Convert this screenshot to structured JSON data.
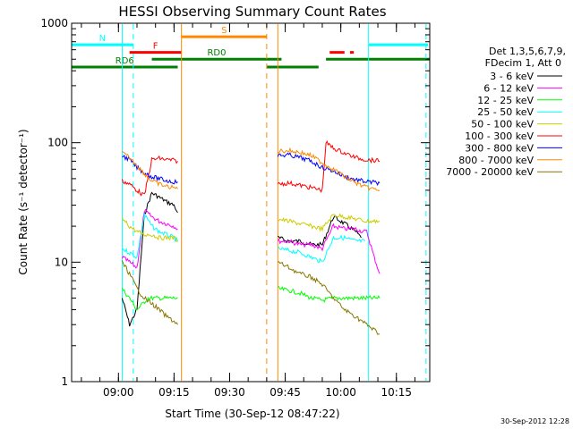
{
  "chart_data": {
    "type": "line",
    "title": "HESSI Observing Summary Count Rates",
    "xlabel": "Start Time (30-Sep-12 08:47:22)",
    "ylabel": "Count Rate (s⁻¹ detector⁻¹)",
    "y_scale": "log",
    "ylim": [
      1,
      1000
    ],
    "xlim": [
      "08:47:22",
      "10:24:00"
    ],
    "y_ticks": [
      {
        "v": 1,
        "label": "1"
      },
      {
        "v": 10,
        "label": "10"
      },
      {
        "v": 100,
        "label": "100"
      },
      {
        "v": 1000,
        "label": "1000"
      }
    ],
    "x_ticks": [
      "09:00",
      "09:15",
      "09:30",
      "09:45",
      "10:00",
      "10:15"
    ],
    "grid": false,
    "legend": {
      "placement": "right",
      "header": [
        "Det 1,3,5,6,7,9,",
        "FDecim 1, Att 0"
      ]
    },
    "series": [
      {
        "name": "3 - 6 keV",
        "color": "#000000",
        "segments": [
          {
            "x": [
              "09:01:00",
              "09:03:00",
              "09:05:00",
              "09:07:00",
              "09:09:00",
              "09:11:00",
              "09:13:00",
              "09:15:00",
              "09:16:00"
            ],
            "y": [
              5,
              3,
              4,
              25,
              38,
              35,
              32,
              30,
              26
            ]
          },
          {
            "x": [
              "09:43:00",
              "09:46:00",
              "09:49:00",
              "09:52:00",
              "09:55:00",
              "09:58:00",
              "10:00:00",
              "10:02:00",
              "10:04:00",
              "10:05:30"
            ],
            "y": [
              16,
              15,
              15,
              14,
              14,
              24,
              22,
              20,
              18,
              16
            ]
          }
        ]
      },
      {
        "name": "6 - 12 keV",
        "color": "#ff00ff",
        "segments": [
          {
            "x": [
              "09:01:00",
              "09:03:00",
              "09:05:00",
              "09:07:00",
              "09:09:00",
              "09:11:00",
              "09:13:00",
              "09:15:00",
              "09:16:00"
            ],
            "y": [
              11,
              10,
              9,
              27,
              24,
              22,
              21,
              20,
              19
            ]
          },
          {
            "x": [
              "09:43:00",
              "09:46:00",
              "09:49:00",
              "09:52:00",
              "09:55:00",
              "09:58:00",
              "10:01:00",
              "10:04:00",
              "10:06:00",
              "10:07:00",
              "10:09:00",
              "10:10:30"
            ],
            "y": [
              15,
              15,
              14,
              14,
              13,
              20,
              19,
              19,
              18,
              18,
              11,
              8
            ]
          }
        ]
      },
      {
        "name": "12 - 25 keV",
        "color": "#00ff00",
        "segments": [
          {
            "x": [
              "09:01:00",
              "09:03:00",
              "09:05:00",
              "09:08:00",
              "09:11:00",
              "09:14:00",
              "09:16:00"
            ],
            "y": [
              6,
              5,
              4,
              5,
              5,
              5,
              5
            ]
          },
          {
            "x": [
              "09:43:00",
              "09:46:00",
              "09:49:00",
              "09:52:00",
              "09:55:00",
              "09:58:00",
              "10:01:00",
              "10:04:00",
              "10:07:00",
              "10:10:30"
            ],
            "y": [
              6,
              5.8,
              5.5,
              5,
              4.8,
              5,
              5,
              5,
              5,
              5
            ]
          }
        ]
      },
      {
        "name": "25 - 50 keV",
        "color": "#00ffff",
        "segments": [
          {
            "x": [
              "09:01:00",
              "09:03:00",
              "09:05:00",
              "09:07:00",
              "09:09:00",
              "09:11:00",
              "09:13:00",
              "09:15:00",
              "09:16:00"
            ],
            "y": [
              13,
              12,
              11,
              25,
              20,
              18,
              17,
              16,
              15
            ]
          },
          {
            "x": [
              "09:43:00",
              "09:46:00",
              "09:49:00",
              "09:52:00",
              "09:55:00",
              "09:58:00",
              "10:01:00",
              "10:04:00",
              "10:06:30"
            ],
            "y": [
              13,
              12.5,
              12,
              11,
              10,
              16,
              16,
              15,
              15
            ]
          }
        ]
      },
      {
        "name": "50 - 100 keV",
        "color": "#cccc00",
        "segments": [
          {
            "x": [
              "09:01:00",
              "09:03:00",
              "09:05:00",
              "09:07:00",
              "09:09:00",
              "09:11:00",
              "09:13:00",
              "09:15:00",
              "09:16:00"
            ],
            "y": [
              23,
              20,
              18,
              17,
              17,
              16,
              16,
              16,
              15
            ]
          },
          {
            "x": [
              "09:43:00",
              "09:46:00",
              "09:49:00",
              "09:52:00",
              "09:55:00",
              "09:58:00",
              "10:01:00",
              "10:04:00",
              "10:07:00",
              "10:10:30"
            ],
            "y": [
              23,
              22,
              21,
              20,
              19,
              25,
              24,
              23,
              22,
              22
            ]
          }
        ]
      },
      {
        "name": "100 - 300 keV",
        "color": "#ff0000",
        "segments": [
          {
            "x": [
              "09:01:00",
              "09:03:00",
              "09:05:00",
              "09:07:00",
              "09:09:00",
              "09:11:00",
              "09:13:00",
              "09:15:00",
              "09:16:00"
            ],
            "y": [
              48,
              45,
              40,
              36,
              72,
              74,
              72,
              71,
              70
            ]
          },
          {
            "x": [
              "09:43:00",
              "09:46:00",
              "09:49:00",
              "09:52:00",
              "09:55:00",
              "09:56:00",
              "09:58:00",
              "10:01:00",
              "10:04:00",
              "10:07:00",
              "10:10:30"
            ],
            "y": [
              45,
              46,
              44,
              42,
              40,
              100,
              90,
              82,
              75,
              72,
              70
            ]
          }
        ]
      },
      {
        "name": "300 - 800 keV",
        "color": "#0000ff",
        "segments": [
          {
            "x": [
              "09:01:00",
              "09:03:00",
              "09:05:00",
              "09:07:00",
              "09:09:00",
              "09:11:00",
              "09:13:00",
              "09:15:00",
              "09:16:00"
            ],
            "y": [
              78,
              72,
              62,
              56,
              52,
              50,
              48,
              47,
              47
            ]
          },
          {
            "x": [
              "09:43:00",
              "09:46:00",
              "09:49:00",
              "09:52:00",
              "09:55:00",
              "09:58:00",
              "10:01:00",
              "10:04:00",
              "10:07:00",
              "10:10:30"
            ],
            "y": [
              78,
              79,
              75,
              70,
              62,
              58,
              52,
              49,
              47,
              46
            ]
          }
        ]
      },
      {
        "name": "800 - 7000 keV",
        "color": "#ff8800",
        "segments": [
          {
            "x": [
              "09:01:00",
              "09:03:00",
              "09:05:00",
              "09:07:00",
              "09:09:00",
              "09:11:00",
              "09:13:00",
              "09:15:00",
              "09:16:00"
            ],
            "y": [
              82,
              75,
              65,
              55,
              48,
              45,
              43,
              42,
              41
            ]
          },
          {
            "x": [
              "09:43:00",
              "09:46:00",
              "09:49:00",
              "09:52:00",
              "09:55:00",
              "09:58:00",
              "10:01:00",
              "10:04:00",
              "10:07:00",
              "10:10:30"
            ],
            "y": [
              85,
              86,
              83,
              78,
              68,
              60,
              52,
              46,
              42,
              40
            ]
          }
        ]
      },
      {
        "name": "7000 - 20000 keV",
        "color": "#887700",
        "segments": [
          {
            "x": [
              "09:01:00",
              "09:03:00",
              "09:05:00",
              "09:07:00",
              "09:09:00",
              "09:11:00",
              "09:13:00",
              "09:15:00",
              "09:16:00"
            ],
            "y": [
              10,
              8,
              6,
              5,
              4.5,
              4,
              3.5,
              3.2,
              3
            ]
          },
          {
            "x": [
              "09:43:00",
              "09:46:00",
              "09:49:00",
              "09:52:00",
              "09:55:00",
              "09:58:00",
              "10:01:00",
              "10:04:00",
              "10:07:00",
              "10:10:30"
            ],
            "y": [
              10,
              9,
              8,
              7.5,
              6.5,
              5,
              4,
              3.5,
              3,
              2.5
            ]
          }
        ]
      }
    ],
    "flags": [
      {
        "label": "N",
        "color": "#00ffff",
        "level": 660,
        "spans": [
          [
            "08:47:22",
            "09:04:00"
          ],
          [
            "10:07:30",
            "10:23:30"
          ]
        ]
      },
      {
        "label": "S",
        "color": "#ff8800",
        "level": 770,
        "spans": [
          [
            "09:17:00",
            "09:40:00"
          ]
        ]
      },
      {
        "label": "F",
        "color": "#ff0000",
        "level": 570,
        "spans": [
          [
            "09:03:00",
            "09:17:00"
          ],
          [
            "09:57:00",
            "10:01:00"
          ],
          [
            "10:02:30",
            "10:03:30"
          ]
        ]
      },
      {
        "label": "RD0",
        "color": "#008000",
        "level": 500,
        "spans": [
          [
            "09:09:00",
            "09:44:00"
          ],
          [
            "09:56:00",
            "10:24:00"
          ]
        ]
      },
      {
        "label": "RD6",
        "color": "#008000",
        "level": 430,
        "spans": [
          [
            "08:47:22",
            "09:16:00"
          ],
          [
            "09:40:00",
            "09:54:00"
          ]
        ]
      }
    ],
    "vlines": [
      {
        "time": "09:01:00",
        "color": "#00ffff",
        "style": "solid"
      },
      {
        "time": "09:04:00",
        "color": "#00ffff",
        "style": "dashed"
      },
      {
        "time": "09:17:00",
        "color": "#ff8800",
        "style": "solid"
      },
      {
        "time": "09:40:00",
        "color": "#ff8800",
        "style": "dashed"
      },
      {
        "time": "09:43:00",
        "color": "#ff8800",
        "style": "solid"
      },
      {
        "time": "10:07:30",
        "color": "#00ffff",
        "style": "solid"
      },
      {
        "time": "10:23:00",
        "color": "#00ffff",
        "style": "dashed"
      }
    ],
    "timestamp": "30-Sep-2012 12:28"
  }
}
